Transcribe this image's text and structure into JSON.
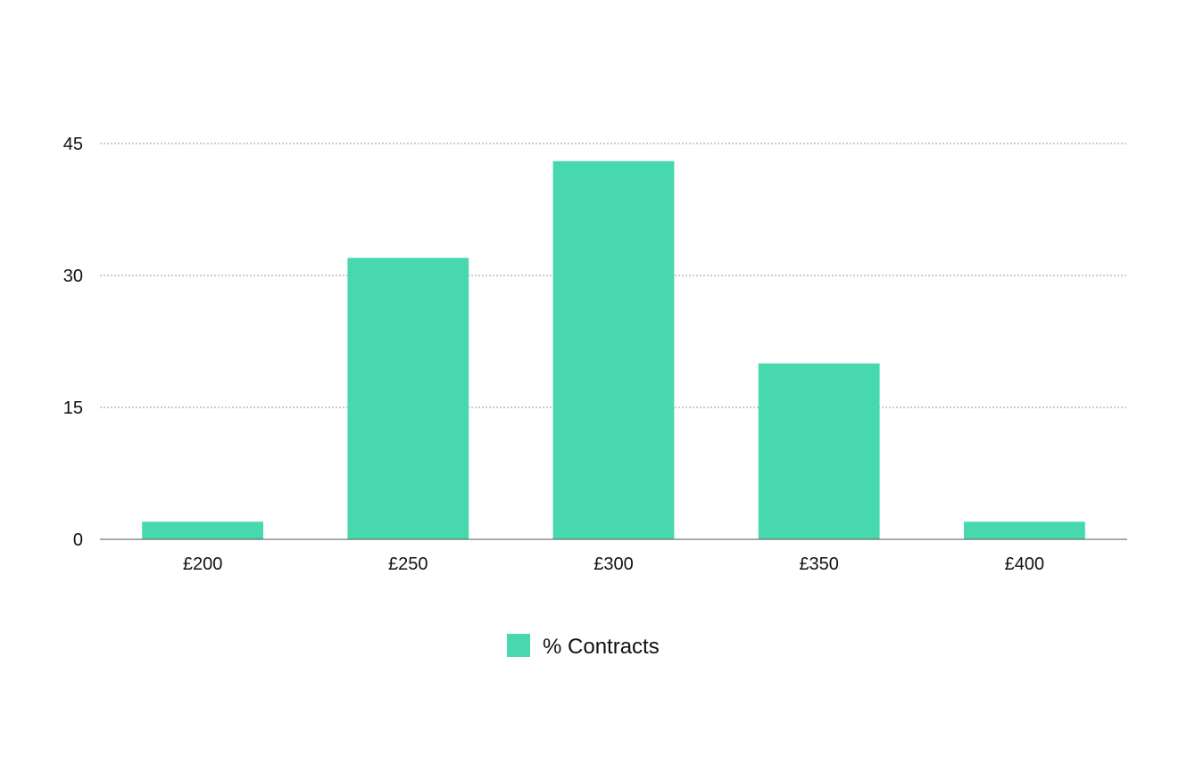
{
  "chart_data": {
    "type": "bar",
    "categories": [
      "£200",
      "£250",
      "£300",
      "£350",
      "£400"
    ],
    "series": [
      {
        "name": "% Contracts",
        "values": [
          2,
          32,
          43,
          20,
          2
        ],
        "color": "#48D8AD"
      }
    ],
    "title": "",
    "xlabel": "",
    "ylabel": "",
    "ylim": [
      0,
      45
    ],
    "yticks": [
      0,
      15,
      30,
      45
    ],
    "ytick_labels": [
      "0",
      "15",
      "30",
      "45"
    ],
    "grid": true,
    "legend_position": "bottom-center"
  }
}
